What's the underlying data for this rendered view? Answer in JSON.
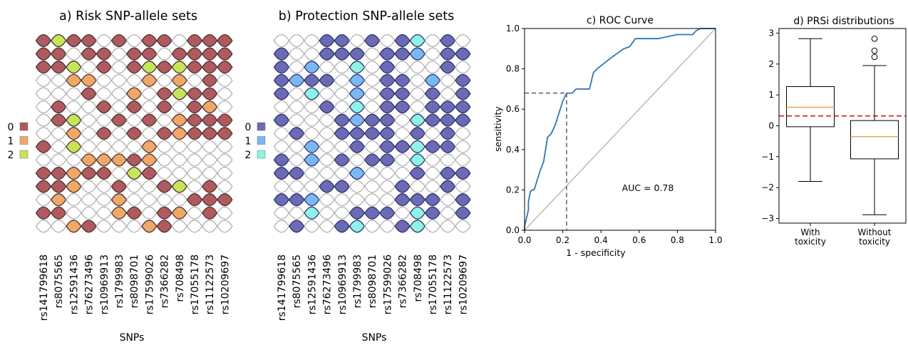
{
  "chart_data": [
    {
      "type": "heatmap",
      "title": "a) Risk SNP-allele sets",
      "xlabel": "SNPs",
      "snps": [
        "rs141799618",
        "rs8075565",
        "rs12591436",
        "rs76273496",
        "rs10969913",
        "rs1799983",
        "rs8098701",
        "rs17599026",
        "rs7366282",
        "rs708498",
        "rs17055178",
        "rs11122573",
        "rs10209697"
      ],
      "legend": [
        {
          "label": "0",
          "color": "#b05a5f"
        },
        {
          "label": "1",
          "color": "#f0a868"
        },
        {
          "label": "2",
          "color": "#c6e65a"
        }
      ],
      "rows": [
        "0200-0-00-000",
        "00-00-00-0000",
        "002-0-0202000",
        "--11---1-1-0-",
        "---0--1-0200-",
        "-0--0-0-0-01-",
        "-02--0-0-1000",
        "--1-0-0-01000",
        "0-2----1-----",
        "---11101-----",
        "00100-20-----",
        "001--0--02-0-",
        "-1---1----000",
        "00---10-01-0-",
        "--10---10----"
      ]
    },
    {
      "type": "heatmap",
      "title": "b) Protection SNP-allele sets",
      "xlabel": "SNPs",
      "snps": [
        "rs141799618",
        "rs8075565",
        "rs12591436",
        "rs76273496",
        "rs10969913",
        "rs1799983",
        "rs8098701",
        "rs17599026",
        "rs7366282",
        "rs708498",
        "rs17055178",
        "rs11122573",
        "rs10209697"
      ],
      "legend": [
        {
          "label": "0",
          "color": "#6b6bb5"
        },
        {
          "label": "1",
          "color": "#7ab8f5"
        },
        {
          "label": "2",
          "color": "#8ef2e6"
        }
      ],
      "rows": [
        "---00-0-02-0-",
        "0--000-001-00",
        "0-1--2-0---0-",
        "0100-1-00-1-0",
        "0-2--1-00-0-0",
        "---0-2-00-000",
        "0---0100-2000",
        "-0--0000-0-0-",
        "--1--0-00200-",
        "0-1-0-00-2---",
        "00---1---0-00",
        "---00---0--0-",
        "001-----000-0",
        "--2--000-20-0",
        "-0--02--02---"
      ]
    },
    {
      "type": "line",
      "title": "c) ROC Curve",
      "xlabel": "1 - specificity",
      "ylabel": "sensitivity",
      "xlim": [
        0.0,
        1.0
      ],
      "ylim": [
        0.0,
        1.0
      ],
      "xticks": [
        "0.0",
        "0.2",
        "0.4",
        "0.6",
        "0.8",
        "1.0"
      ],
      "yticks": [
        "0.0",
        "0.2",
        "0.4",
        "0.6",
        "0.8",
        "1.0"
      ],
      "annotation": "AUC = 0.78",
      "operating_point": {
        "x": 0.22,
        "y": 0.68
      },
      "colors": {
        "curve": "#2e75b6",
        "diagonal": "#bdbdbd",
        "guide": "#7a7a7a"
      },
      "roc": {
        "x": [
          0.0,
          0.0,
          0.01,
          0.02,
          0.02,
          0.03,
          0.04,
          0.05,
          0.07,
          0.08,
          0.1,
          0.12,
          0.14,
          0.16,
          0.18,
          0.2,
          0.22,
          0.25,
          0.27,
          0.3,
          0.34,
          0.36,
          0.38,
          0.42,
          0.46,
          0.52,
          0.55,
          0.58,
          0.64,
          0.7,
          0.75,
          0.8,
          0.84,
          0.88,
          0.9,
          0.92,
          1.0
        ],
        "y": [
          0.0,
          0.02,
          0.06,
          0.1,
          0.14,
          0.19,
          0.2,
          0.2,
          0.26,
          0.29,
          0.34,
          0.46,
          0.48,
          0.52,
          0.58,
          0.64,
          0.68,
          0.68,
          0.7,
          0.7,
          0.7,
          0.78,
          0.8,
          0.83,
          0.86,
          0.9,
          0.91,
          0.95,
          0.95,
          0.95,
          0.96,
          0.97,
          0.97,
          0.97,
          0.99,
          1.0,
          1.0
        ]
      }
    },
    {
      "type": "box",
      "title": "d) PRSi distributions",
      "categories": [
        "With toxicity",
        "Without toxicity"
      ],
      "ylim": [
        -3.15,
        3.15
      ],
      "yticks": [
        "3",
        "2",
        "1",
        "0",
        "−1",
        "−2",
        "−3"
      ],
      "threshold": 0.32,
      "colors": {
        "median": "#f0a050",
        "threshold": "#d62728"
      },
      "boxes": [
        {
          "whisker_low": -1.8,
          "q1": -0.03,
          "median": 0.6,
          "q3": 1.27,
          "whisker_high": 2.82,
          "outliers": []
        },
        {
          "whisker_low": -2.88,
          "q1": -1.07,
          "median": -0.35,
          "q3": 0.17,
          "whisker_high": 1.95,
          "outliers": [
            2.23,
            2.43,
            2.82
          ]
        }
      ]
    }
  ]
}
